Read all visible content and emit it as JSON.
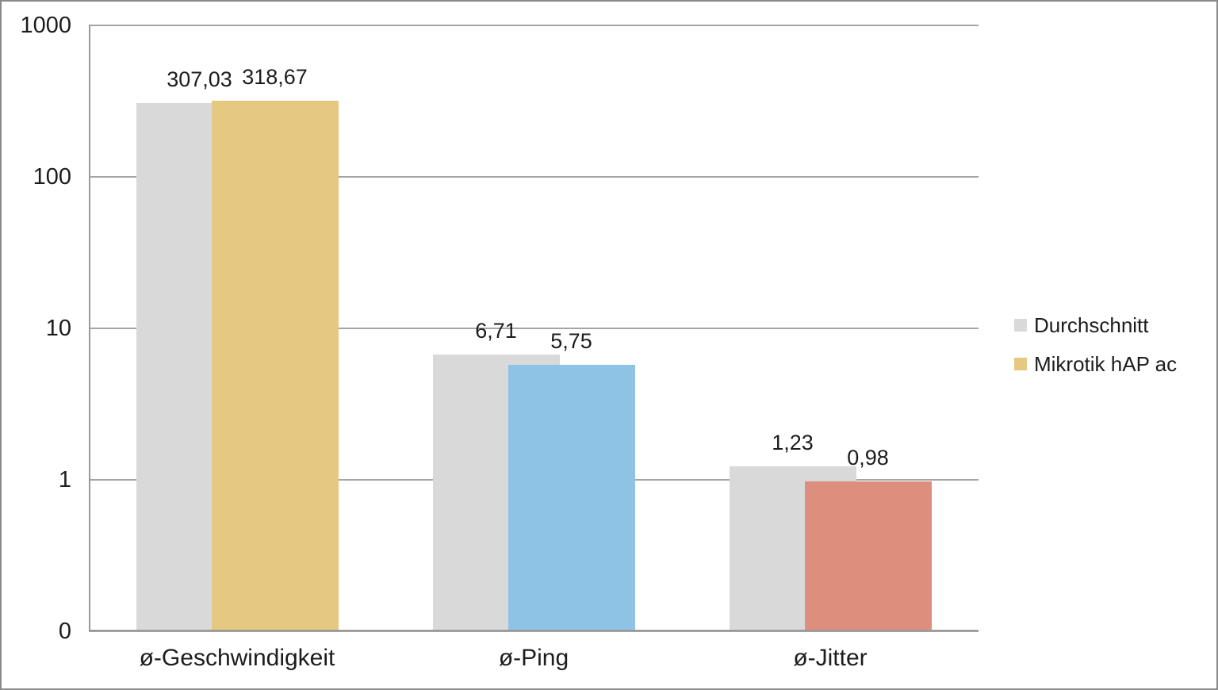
{
  "chart_data": {
    "type": "bar",
    "subtype": "overlapping-bars",
    "y_scale": "log",
    "title": "",
    "xlabel": "",
    "ylabel": "",
    "grid": true,
    "legend_position": "right",
    "categories": [
      "ø-Geschwindigkeit",
      "ø-Ping",
      "ø-Jitter"
    ],
    "series": [
      {
        "name": "Durchschnitt",
        "values": [
          307.03,
          6.71,
          1.23
        ],
        "value_labels": [
          "307,03",
          "6,71",
          "1,23"
        ],
        "bar_colors": [
          "#d9d9d9",
          "#d9d9d9",
          "#d9d9d9"
        ],
        "legend_color": "#d9d9d9"
      },
      {
        "name": "Mikrotik hAP ac",
        "values": [
          318.67,
          5.75,
          0.98
        ],
        "value_labels": [
          "318,67",
          "5,75",
          "0,98"
        ],
        "bar_colors": [
          "#e5c981",
          "#8ec3e6",
          "#dd8e7d"
        ],
        "legend_color": "#e5c981"
      }
    ],
    "y_ticks": [
      {
        "label": "1000",
        "value": 1000
      },
      {
        "label": "100",
        "value": 100
      },
      {
        "label": "10",
        "value": 10
      },
      {
        "label": "1",
        "value": 1
      },
      {
        "label": "0",
        "value": 0.1
      }
    ],
    "ylim": [
      0.1,
      1000
    ],
    "colors": {
      "gridline": "#a5a5a5",
      "axis": "#9a9a9a",
      "text": "#1c1c1c",
      "border": "#8a8a8a",
      "background": "#ffffff"
    }
  }
}
